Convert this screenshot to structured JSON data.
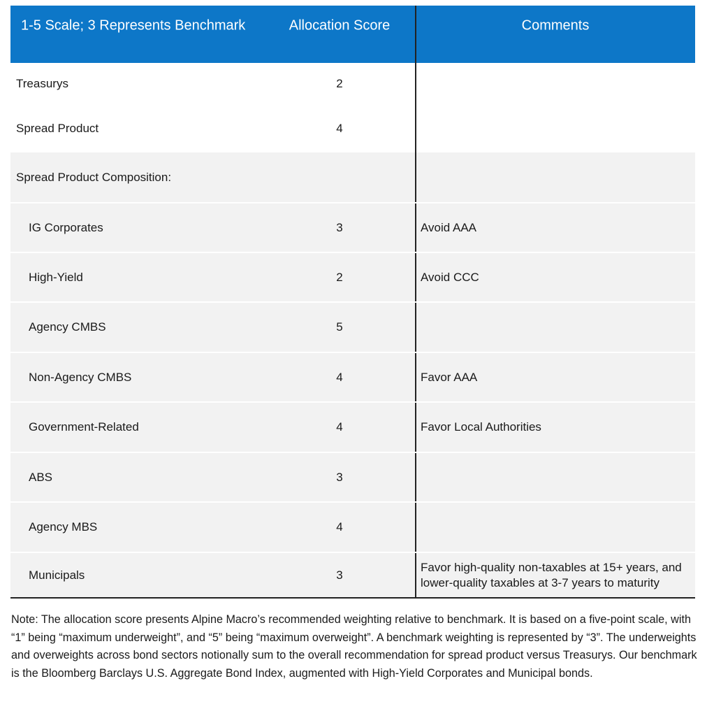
{
  "table": {
    "headers": [
      "1-5 Scale; 3 Represents Benchmark",
      "Allocation Score",
      "Comments"
    ],
    "rows": [
      {
        "label": "Treasurys",
        "score": 2
      },
      {
        "label": "Spread Product",
        "score": 4
      },
      {
        "label": "Spread Product Composition:"
      },
      {
        "label": "IG Corporates",
        "score": 3,
        "comment": "Avoid AAA"
      },
      {
        "label": "High-Yield",
        "score": 2,
        "comment": "Avoid CCC"
      },
      {
        "label": "Agency CMBS",
        "score": 5
      },
      {
        "label": "Non-Agency CMBS",
        "score": 4,
        "comment": "Favor AAA"
      },
      {
        "label": "Government-Related",
        "score": 4,
        "comment": "Favor Local Authorities"
      },
      {
        "label": "ABS",
        "score": 3
      },
      {
        "label": "Agency MBS",
        "score": 4
      },
      {
        "label": "Municipals",
        "score": 3,
        "comment": "Favor high-quality non-taxables at 15+ years, and lower-quality taxables at 3-7 years to maturity"
      }
    ]
  },
  "note": "Note: The allocation score presents Alpine Macro’s recommended weighting relative to benchmark. It is based on a five-point scale, with “1” being “maximum underweight”, and “5” being “maximum overweight”. A benchmark weighting is represented by “3”. The underweights and overweights across bond sectors notionally sum to the overall recommendation for spread product versus Treasurys. Our benchmark is the Bloomberg Barclays U.S. Aggregate Bond Index, augmented with High-Yield Corporates and Municipal bonds."
}
